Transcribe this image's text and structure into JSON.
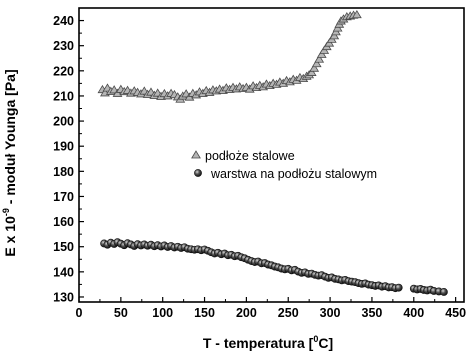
{
  "chart_data": {
    "type": "scatter",
    "xlabel_main": "T -  temperatura [",
    "xlabel_sup": "0",
    "xlabel_end": "C]",
    "ylabel_main": "E x 10",
    "ylabel_sup": "-9",
    "ylabel_end": " - moduł Younga  [Pa]",
    "xlim": [
      0,
      460
    ],
    "ylim": [
      128,
      245
    ],
    "xticks": [
      0,
      50,
      100,
      150,
      200,
      250,
      300,
      350,
      400,
      450
    ],
    "yticks": [
      130,
      140,
      150,
      160,
      170,
      180,
      190,
      200,
      210,
      220,
      230,
      240
    ],
    "legend_position": "center",
    "series": [
      {
        "name": "podłoże stalowe",
        "marker": "triangle",
        "color": "#9a9a9a",
        "points": [
          [
            28,
            212.5
          ],
          [
            31,
            211.2
          ],
          [
            34,
            213.1
          ],
          [
            38,
            211.8
          ],
          [
            42,
            212.4
          ],
          [
            46,
            211.0
          ],
          [
            50,
            212.6
          ],
          [
            54,
            211.7
          ],
          [
            58,
            212.2
          ],
          [
            62,
            211.1
          ],
          [
            66,
            212.0
          ],
          [
            70,
            211.4
          ],
          [
            74,
            210.8
          ],
          [
            78,
            211.9
          ],
          [
            82,
            210.6
          ],
          [
            86,
            211.5
          ],
          [
            90,
            210.2
          ],
          [
            94,
            211.1
          ],
          [
            98,
            209.8
          ],
          [
            102,
            210.9
          ],
          [
            106,
            210.0
          ],
          [
            110,
            211.0
          ],
          [
            114,
            210.5
          ],
          [
            118,
            209.6
          ],
          [
            121,
            208.7
          ],
          [
            124,
            209.9
          ],
          [
            128,
            210.8
          ],
          [
            132,
            209.5
          ],
          [
            136,
            211.0
          ],
          [
            140,
            210.4
          ],
          [
            144,
            211.6
          ],
          [
            148,
            211.0
          ],
          [
            152,
            212.1
          ],
          [
            156,
            211.4
          ],
          [
            160,
            212.4
          ],
          [
            164,
            212.0
          ],
          [
            168,
            212.7
          ],
          [
            172,
            212.2
          ],
          [
            176,
            213.2
          ],
          [
            180,
            212.6
          ],
          [
            184,
            213.4
          ],
          [
            188,
            212.8
          ],
          [
            192,
            213.6
          ],
          [
            196,
            212.9
          ],
          [
            200,
            213.4
          ],
          [
            204,
            212.7
          ],
          [
            208,
            214.0
          ],
          [
            212,
            213.3
          ],
          [
            216,
            214.2
          ],
          [
            220,
            213.6
          ],
          [
            224,
            214.7
          ],
          [
            228,
            214.1
          ],
          [
            232,
            215.0
          ],
          [
            236,
            214.6
          ],
          [
            240,
            215.5
          ],
          [
            244,
            215.0
          ],
          [
            248,
            216.1
          ],
          [
            252,
            215.6
          ],
          [
            256,
            216.6
          ],
          [
            260,
            216.2
          ],
          [
            264,
            217.3
          ],
          [
            268,
            216.9
          ],
          [
            272,
            217.8
          ],
          [
            275,
            218.4
          ],
          [
            278,
            219.3
          ],
          [
            281,
            221.0
          ],
          [
            284,
            222.8
          ],
          [
            287,
            224.6
          ],
          [
            290,
            226.5
          ],
          [
            293,
            228.1
          ],
          [
            296,
            229.6
          ],
          [
            299,
            231.0
          ],
          [
            302,
            232.5
          ],
          [
            305,
            233.9
          ],
          [
            307,
            235.5
          ],
          [
            309,
            237.0
          ],
          [
            311,
            238.5
          ],
          [
            313,
            239.8
          ],
          [
            316,
            240.6
          ],
          [
            320,
            241.5
          ],
          [
            324,
            241.8
          ],
          [
            328,
            242.1
          ],
          [
            332,
            242.3
          ]
        ]
      },
      {
        "name": "warstwa na podłożu stalowym",
        "marker": "circle",
        "color": "#3a3a3a",
        "points": [
          [
            30,
            151.3
          ],
          [
            34,
            150.8
          ],
          [
            38,
            151.6
          ],
          [
            42,
            151.1
          ],
          [
            46,
            151.8
          ],
          [
            50,
            151.2
          ],
          [
            54,
            150.6
          ],
          [
            58,
            151.4
          ],
          [
            62,
            150.9
          ],
          [
            66,
            150.3
          ],
          [
            70,
            151.0
          ],
          [
            74,
            150.5
          ],
          [
            78,
            150.9
          ],
          [
            82,
            150.4
          ],
          [
            86,
            150.8
          ],
          [
            90,
            150.2
          ],
          [
            94,
            150.6
          ],
          [
            98,
            150.1
          ],
          [
            102,
            150.5
          ],
          [
            106,
            149.9
          ],
          [
            110,
            150.3
          ],
          [
            114,
            149.7
          ],
          [
            118,
            150.0
          ],
          [
            122,
            149.5
          ],
          [
            126,
            149.8
          ],
          [
            130,
            149.2
          ],
          [
            134,
            149.0
          ],
          [
            138,
            148.8
          ],
          [
            142,
            149.0
          ],
          [
            146,
            148.6
          ],
          [
            150,
            148.9
          ],
          [
            154,
            148.4
          ],
          [
            158,
            147.8
          ],
          [
            162,
            147.3
          ],
          [
            166,
            147.6
          ],
          [
            170,
            147.0
          ],
          [
            174,
            147.3
          ],
          [
            178,
            146.6
          ],
          [
            182,
            146.8
          ],
          [
            186,
            146.2
          ],
          [
            190,
            146.4
          ],
          [
            194,
            145.8
          ],
          [
            198,
            145.4
          ],
          [
            202,
            144.8
          ],
          [
            206,
            144.3
          ],
          [
            210,
            143.9
          ],
          [
            214,
            144.1
          ],
          [
            218,
            143.4
          ],
          [
            222,
            143.5
          ],
          [
            226,
            142.9
          ],
          [
            230,
            142.6
          ],
          [
            234,
            142.1
          ],
          [
            238,
            141.8
          ],
          [
            242,
            141.3
          ],
          [
            246,
            141.0
          ],
          [
            250,
            141.2
          ],
          [
            254,
            140.6
          ],
          [
            258,
            140.8
          ],
          [
            262,
            140.1
          ],
          [
            266,
            139.6
          ],
          [
            270,
            139.8
          ],
          [
            274,
            139.2
          ],
          [
            278,
            139.3
          ],
          [
            282,
            138.8
          ],
          [
            286,
            138.5
          ],
          [
            290,
            138.7
          ],
          [
            294,
            138.1
          ],
          [
            298,
            137.6
          ],
          [
            302,
            137.8
          ],
          [
            306,
            137.2
          ],
          [
            310,
            137.0
          ],
          [
            314,
            136.6
          ],
          [
            318,
            136.8
          ],
          [
            322,
            136.3
          ],
          [
            326,
            136.1
          ],
          [
            330,
            135.9
          ],
          [
            334,
            135.5
          ],
          [
            338,
            135.2
          ],
          [
            342,
            135.4
          ],
          [
            346,
            134.9
          ],
          [
            350,
            134.7
          ],
          [
            354,
            134.4
          ],
          [
            358,
            134.6
          ],
          [
            362,
            134.1
          ],
          [
            366,
            134.3
          ],
          [
            370,
            133.8
          ],
          [
            374,
            133.9
          ],
          [
            378,
            133.5
          ],
          [
            382,
            133.7
          ],
          [
            400,
            133.3
          ],
          [
            404,
            133.0
          ],
          [
            408,
            133.2
          ],
          [
            412,
            132.8
          ],
          [
            416,
            132.6
          ],
          [
            420,
            132.9
          ],
          [
            424,
            132.4
          ],
          [
            430,
            132.2
          ],
          [
            436,
            132.0
          ]
        ]
      }
    ]
  }
}
